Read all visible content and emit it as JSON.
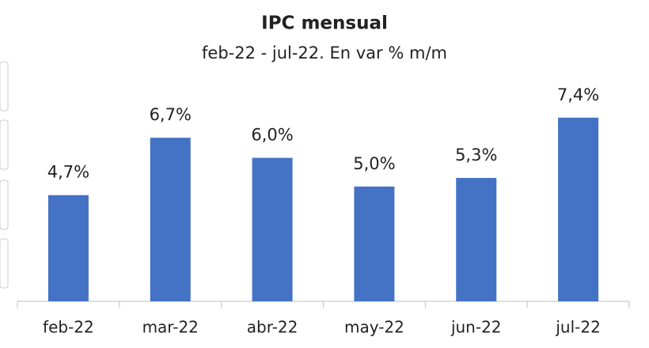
{
  "chart_data": {
    "type": "bar",
    "title": "IPC mensual",
    "subtitle": "feb-22 - jul-22. En var % m/m",
    "categories": [
      "feb-22",
      "mar-22",
      "abr-22",
      "may-22",
      "jun-22",
      "jul-22"
    ],
    "values": [
      4.7,
      6.7,
      6.0,
      5.0,
      5.3,
      7.4
    ],
    "value_labels": [
      "4,7%",
      "6,7%",
      "6,0%",
      "5,0%",
      "5,3%",
      "7,4%"
    ],
    "color": "#4472c4",
    "ylim": [
      1,
      8
    ]
  }
}
